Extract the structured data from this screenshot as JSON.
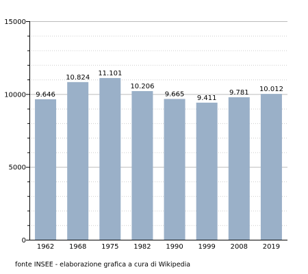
{
  "chart_data": {
    "type": "bar",
    "categories": [
      "1962",
      "1968",
      "1975",
      "1982",
      "1990",
      "1999",
      "2008",
      "2019"
    ],
    "values": [
      9646,
      10824,
      11101,
      10206,
      9665,
      9411,
      9781,
      10012
    ],
    "value_labels": [
      "9.646",
      "10.824",
      "11.101",
      "10.206",
      "9.665",
      "9.411",
      "9.781",
      "10.012"
    ],
    "y_ticks": [
      0,
      5000,
      10000,
      15000
    ],
    "y_tick_labels": [
      "0",
      "5000",
      "10000",
      "15000"
    ],
    "ylim": [
      0,
      15000
    ],
    "bar_color": "#9ab0c8",
    "grid": true
  },
  "source_note": "fonte INSEE - elaborazione grafica a cura di Wikipedia"
}
